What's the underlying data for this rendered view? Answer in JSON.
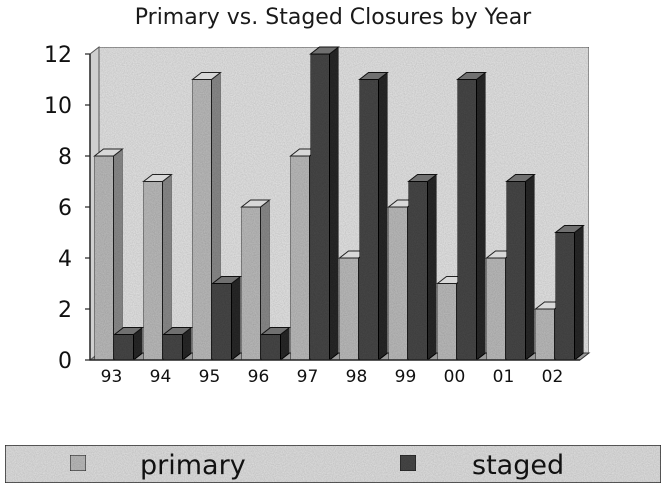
{
  "chart_data": {
    "type": "bar",
    "title": "Primary vs. Staged Closures by Year",
    "categories": [
      "93",
      "94",
      "95",
      "96",
      "97",
      "98",
      "99",
      "00",
      "01",
      "02"
    ],
    "series": [
      {
        "name": "primary",
        "values": [
          8,
          7,
          11,
          6,
          8,
          4,
          6,
          3,
          4,
          2
        ]
      },
      {
        "name": "staged",
        "values": [
          1,
          1,
          3,
          1,
          12,
          11,
          7,
          11,
          7,
          5
        ]
      }
    ],
    "xlabel": "",
    "ylabel": "",
    "ylim": [
      0,
      12
    ],
    "yticks": [
      "0",
      "2",
      "4",
      "6",
      "8",
      "10",
      "12"
    ],
    "grid": false,
    "style": "3d",
    "legend_position": "bottom",
    "colors": {
      "primary_face": "#bdbdbd",
      "primary_dark": "#8c8c8c",
      "staged_face": "#4a4a4a",
      "staged_dark": "#2a2a2a",
      "wall": "#e6e6e6",
      "floor": "#9a9a9a"
    }
  }
}
